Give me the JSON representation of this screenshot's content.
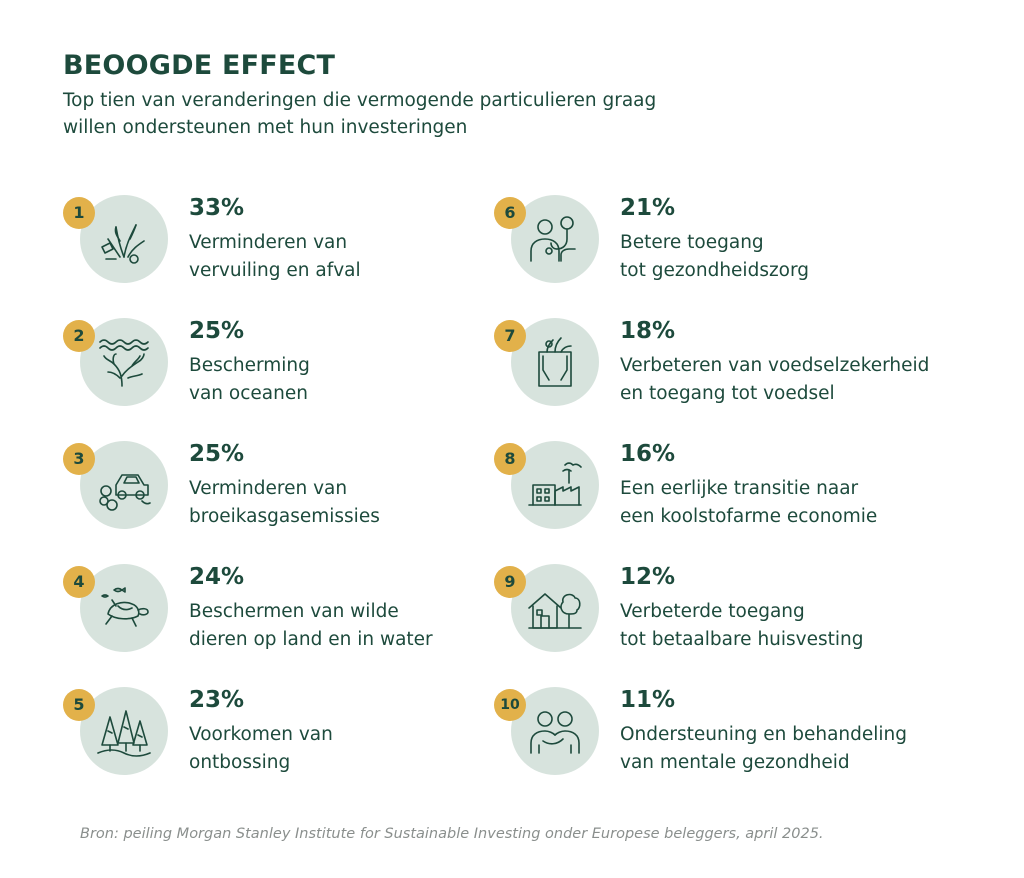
{
  "header": {
    "title": "BEOOGDE EFFECT",
    "subtitle": "Top tien van veranderingen die vermogende particulieren graag willen ondersteunen met hun investeringen"
  },
  "colors": {
    "text": "#1d4a3c",
    "badge": "#e2b14a",
    "circle": "#d7e3dd",
    "source": "#8a8f8d"
  },
  "items": [
    {
      "rank": "1",
      "percent": "33%",
      "label": "Verminderen van\nvervuiling en afval",
      "icon": "pollution-waste-icon"
    },
    {
      "rank": "2",
      "percent": "25%",
      "label": "Bescherming\nvan oceanen",
      "icon": "coral-ocean-icon"
    },
    {
      "rank": "3",
      "percent": "25%",
      "label": "Verminderen van\nbroeikasgasemissies",
      "icon": "car-emission-icon"
    },
    {
      "rank": "4",
      "percent": "24%",
      "label": "Beschermen van wilde\ndieren op land en in water",
      "icon": "turtle-fish-icon"
    },
    {
      "rank": "5",
      "percent": "23%",
      "label": "Voorkomen van\nontbossing",
      "icon": "forest-icon"
    },
    {
      "rank": "6",
      "percent": "21%",
      "label": "Betere toegang\ntot gezondheidszorg",
      "icon": "doctor-stethoscope-icon"
    },
    {
      "rank": "7",
      "percent": "18%",
      "label": "Verbeteren van voedselzekerheid\nen toegang tot voedsel",
      "icon": "grocery-bag-icon"
    },
    {
      "rank": "8",
      "percent": "16%",
      "label": "Een eerlijke transitie naar\neen koolstofarme economie",
      "icon": "factory-icon"
    },
    {
      "rank": "9",
      "percent": "12%",
      "label": "Verbeterde toegang\ntot betaalbare huisvesting",
      "icon": "house-tree-icon"
    },
    {
      "rank": "10",
      "percent": "11%",
      "label": "Ondersteuning en behandeling\nvan mentale gezondheid",
      "icon": "people-support-icon"
    }
  ],
  "source": "Bron: peiling Morgan Stanley Institute for Sustainable Investing onder Europese beleggers, april 2025."
}
